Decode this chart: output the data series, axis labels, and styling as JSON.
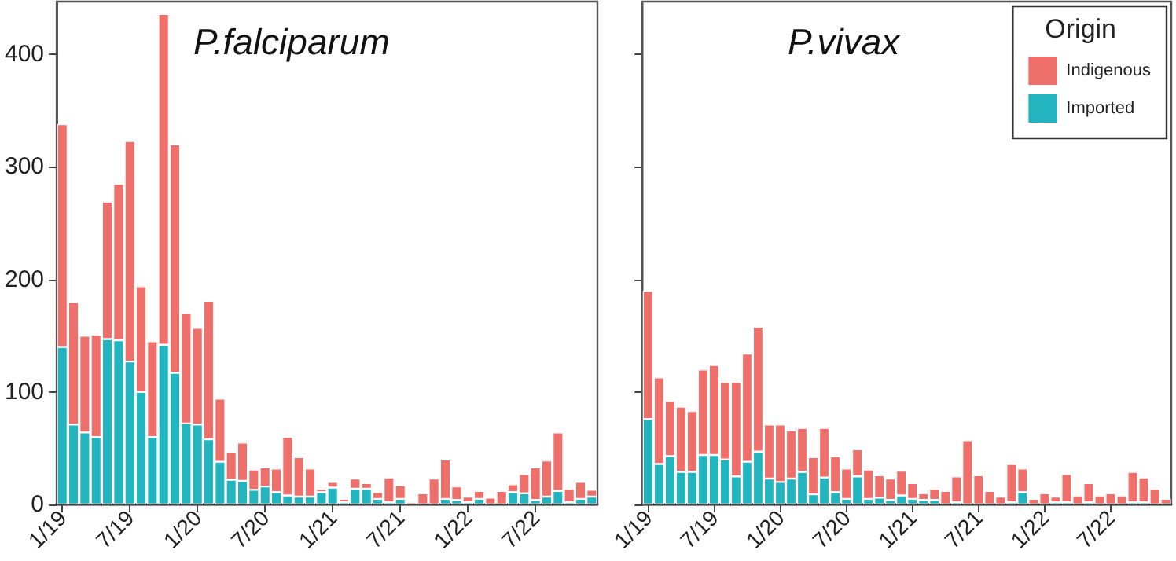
{
  "chart_data": [
    {
      "type": "bar",
      "title": "P.falciparum",
      "stacked": true,
      "categories": [
        "1/19",
        null,
        null,
        null,
        null,
        null,
        "7/19",
        null,
        null,
        null,
        null,
        null,
        "1/20",
        null,
        null,
        null,
        null,
        null,
        "7/20",
        null,
        null,
        null,
        null,
        null,
        "1/21",
        null,
        null,
        null,
        null,
        null,
        "7/21",
        null,
        null,
        null,
        null,
        null,
        "1/22",
        null,
        null,
        null,
        null,
        null,
        "7/22",
        null,
        null,
        null,
        null,
        null
      ],
      "series": [
        {
          "color": "#22b5c0",
          "values": [
            140,
            71,
            64,
            60,
            147,
            146,
            127,
            100,
            60,
            142,
            117,
            72,
            71,
            58,
            38,
            22,
            21,
            13,
            16,
            11,
            8,
            7,
            7,
            11,
            15,
            2,
            14,
            14,
            5,
            2,
            5,
            0,
            0,
            0,
            5,
            4,
            2,
            5,
            0,
            0,
            11,
            10,
            4,
            7,
            12,
            2,
            5,
            7
          ]
        },
        {
          "color": "#ef6f6a",
          "values": [
            198,
            109,
            86,
            91,
            122,
            139,
            196,
            94,
            85,
            294,
            203,
            98,
            86,
            123,
            56,
            25,
            34,
            18,
            17,
            21,
            52,
            35,
            25,
            3,
            5,
            3,
            9,
            5,
            6,
            22,
            12,
            2,
            10,
            23,
            35,
            12,
            5,
            7,
            6,
            12,
            7,
            17,
            29,
            32,
            52,
            12,
            15,
            6
          ]
        }
      ],
      "ylim": [
        0,
        447
      ],
      "yticks": [
        0,
        100,
        200,
        300,
        400
      ],
      "grid": false,
      "legend": false
    },
    {
      "type": "bar",
      "title": "P.vivax",
      "stacked": true,
      "legend_title": "Origin",
      "categories": [
        "1/19",
        null,
        null,
        null,
        null,
        null,
        "7/19",
        null,
        null,
        null,
        null,
        null,
        "1/20",
        null,
        null,
        null,
        null,
        null,
        "7/20",
        null,
        null,
        null,
        null,
        null,
        "1/21",
        null,
        null,
        null,
        null,
        null,
        "7/21",
        null,
        null,
        null,
        null,
        null,
        "1/22",
        null,
        null,
        null,
        null,
        null,
        "7/22",
        null,
        null,
        null,
        null,
        null
      ],
      "series": [
        {
          "name": "Imported",
          "color": "#22b5c0",
          "values": [
            76,
            36,
            43,
            29,
            29,
            44,
            44,
            40,
            25,
            38,
            47,
            23,
            20,
            23,
            29,
            9,
            24,
            11,
            5,
            25,
            5,
            6,
            4,
            8,
            5,
            4,
            4,
            0,
            2,
            0,
            0,
            0,
            0,
            2,
            11,
            0,
            0,
            2,
            2,
            0,
            2,
            0,
            0,
            0,
            2,
            2,
            0,
            0
          ]
        },
        {
          "name": "Indigenous",
          "color": "#ef6f6a",
          "values": [
            114,
            77,
            49,
            58,
            54,
            76,
            80,
            69,
            84,
            96,
            111,
            48,
            51,
            43,
            39,
            33,
            44,
            32,
            27,
            24,
            26,
            20,
            19,
            22,
            14,
            6,
            10,
            12,
            23,
            57,
            26,
            12,
            7,
            34,
            21,
            5,
            10,
            5,
            25,
            8,
            17,
            8,
            10,
            8,
            27,
            22,
            14,
            5
          ]
        }
      ],
      "ylim": [
        0,
        447
      ],
      "yticks": [
        0,
        100,
        200,
        300,
        400
      ],
      "grid": false,
      "legend": "top right",
      "tick_labels": "x"
    }
  ]
}
